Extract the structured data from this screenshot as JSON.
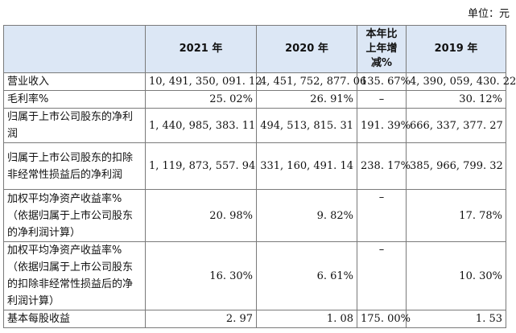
{
  "unit_label": "单位：元",
  "headers": {
    "label": "",
    "y2021": "2021 年",
    "y2020": "2020 年",
    "change_line1": "本年比",
    "change_line2": "上年增",
    "change_line3": "减%",
    "y2019": "2019 年"
  },
  "rows": [
    {
      "label": "营业收入",
      "y2021": "10, 491, 350, 091. 12",
      "y2020": "4, 451, 752, 877. 06",
      "change": "135. 67%",
      "y2019": "4, 390, 059, 430. 22"
    },
    {
      "label": "毛利率%",
      "y2021": "25. 02%",
      "y2020": "26. 91%",
      "change": "–",
      "y2019": "30. 12%"
    },
    {
      "label": "归属于上市公司股东的净利润",
      "y2021": "1, 440, 985, 383. 11",
      "y2020": "494, 513, 815. 31",
      "change": "191. 39%",
      "y2019": "666, 337, 377. 27"
    },
    {
      "label": "归属于上市公司股东的扣除非经常性损益后的净利润",
      "y2021": "1, 119, 873, 557. 94",
      "y2020": "331, 160, 491. 14",
      "change": "238. 17%",
      "y2019": "385, 966, 799. 32"
    },
    {
      "label": "加权平均净资产收益率%（依据归属于上市公司股东的净利润计算）",
      "y2021": "20. 98%",
      "y2020": "9. 82%",
      "change": "–",
      "y2019": "17. 78%"
    },
    {
      "label": "加权平均净资产收益率%（依据归属于上市公司股东的扣除非经常性损益后的净利润计算）",
      "y2021": "16. 30%",
      "y2020": "6. 61%",
      "change": "–",
      "y2019": "10. 30%"
    },
    {
      "label": "基本每股收益",
      "y2021": "2. 97",
      "y2020": "1. 08",
      "change": "175. 00%",
      "y2019": "1. 53"
    }
  ]
}
